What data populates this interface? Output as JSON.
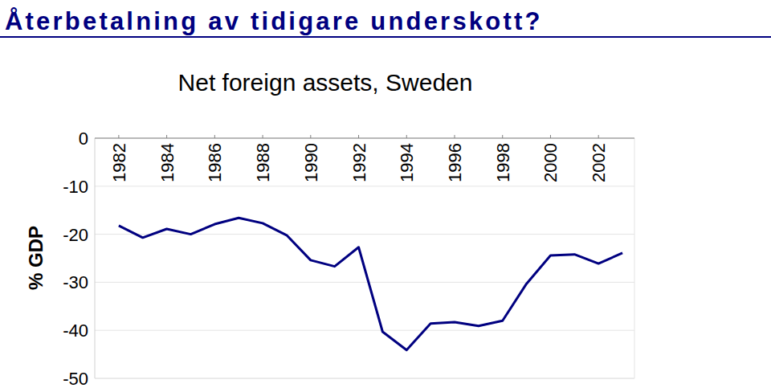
{
  "chart_data": {
    "type": "line",
    "title": "Återbetalning av tidigare underskott?",
    "subtitle": "Net foreign assets, Sweden",
    "ylabel": "% GDP",
    "x": [
      1982,
      1983,
      1984,
      1985,
      1986,
      1987,
      1988,
      1989,
      1990,
      1991,
      1992,
      1993,
      1994,
      1995,
      1996,
      1997,
      1998,
      1999,
      2000,
      2001,
      2002,
      2003
    ],
    "values": [
      -18.2,
      -20.7,
      -18.9,
      -20.0,
      -17.9,
      -16.6,
      -17.7,
      -20.2,
      -25.4,
      -26.7,
      -22.7,
      -40.3,
      -44.1,
      -38.6,
      -38.3,
      -39.1,
      -38.0,
      -30.3,
      -24.4,
      -24.2,
      -26.1,
      -23.9
    ],
    "color": "#000080",
    "xlim": [
      1981,
      2003.5
    ],
    "ylim": [
      -50,
      0
    ],
    "xticks": [
      1982,
      1984,
      1986,
      1988,
      1990,
      1992,
      1994,
      1996,
      1998,
      2000,
      2002
    ],
    "yticks": [
      0,
      -10,
      -20,
      -30,
      -40,
      -50
    ],
    "grid": true
  }
}
